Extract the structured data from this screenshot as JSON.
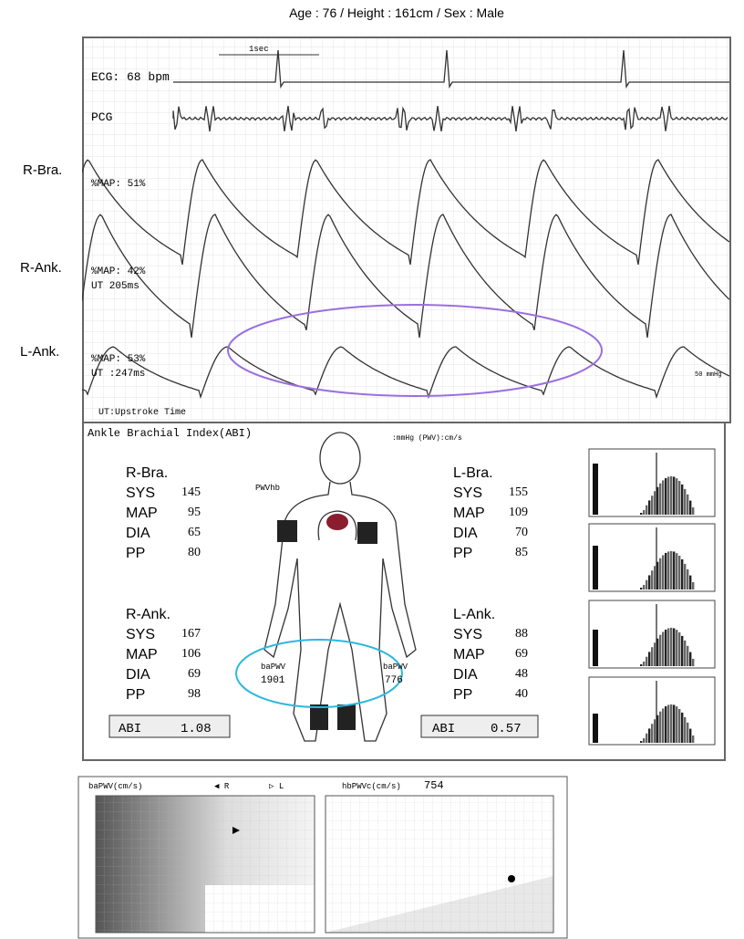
{
  "header": {
    "title": "Age : 76 / Height : 161cm / Sex : Male"
  },
  "side_labels": [
    "R-Bra.",
    "R-Ank.",
    "L-Ank."
  ],
  "waveforms": {
    "ecg": "ECG: 68 bpm",
    "pcg": "PCG",
    "scale": "1sec",
    "r_bra": [
      "%MAP: 51%"
    ],
    "r_ank": [
      "%MAP: 42%",
      "UT  205ms"
    ],
    "l_ank": [
      "%MAP: 53%",
      "UT  :247ms"
    ],
    "footnote": "UT:Upstroke Time",
    "mmhg": "50 mmHg"
  },
  "abi": {
    "title": "Ankle Brachial Index(ABI)",
    "units": ":mmHg   (PWV):cm/s",
    "blocks": [
      {
        "name": "R-Bra.",
        "rows": [
          [
            "SYS",
            "145"
          ],
          [
            "MAP",
            "95"
          ],
          [
            "DIA",
            "65"
          ],
          [
            "PP",
            "80"
          ]
        ]
      },
      {
        "name": "L-Bra.",
        "rows": [
          [
            "SYS",
            "155"
          ],
          [
            "MAP",
            "109"
          ],
          [
            "DIA",
            "70"
          ],
          [
            "PP",
            "85"
          ]
        ]
      },
      {
        "name": "R-Ank.",
        "rows": [
          [
            "SYS",
            "167"
          ],
          [
            "MAP",
            "106"
          ],
          [
            "DIA",
            "69"
          ],
          [
            "PP",
            "98"
          ]
        ]
      },
      {
        "name": "L-Ank.",
        "rows": [
          [
            "SYS",
            "88"
          ],
          [
            "MAP",
            "69"
          ],
          [
            "DIA",
            "48"
          ],
          [
            "PP",
            "40"
          ]
        ]
      }
    ],
    "abi_right": [
      "ABI",
      "1.08"
    ],
    "abi_left": [
      "ABI",
      "0.57"
    ],
    "pwvhb": "PWVhb",
    "bapwv_right": [
      "baPWV",
      "1901"
    ],
    "bapwv_left": [
      "baPWV",
      "776"
    ]
  },
  "bottom": {
    "left_title": "baPWV(cm/s)",
    "legend": [
      "◀ R",
      "▷ L"
    ],
    "right_title": "hbPWVc(cm/s)",
    "right_value": "754"
  }
}
